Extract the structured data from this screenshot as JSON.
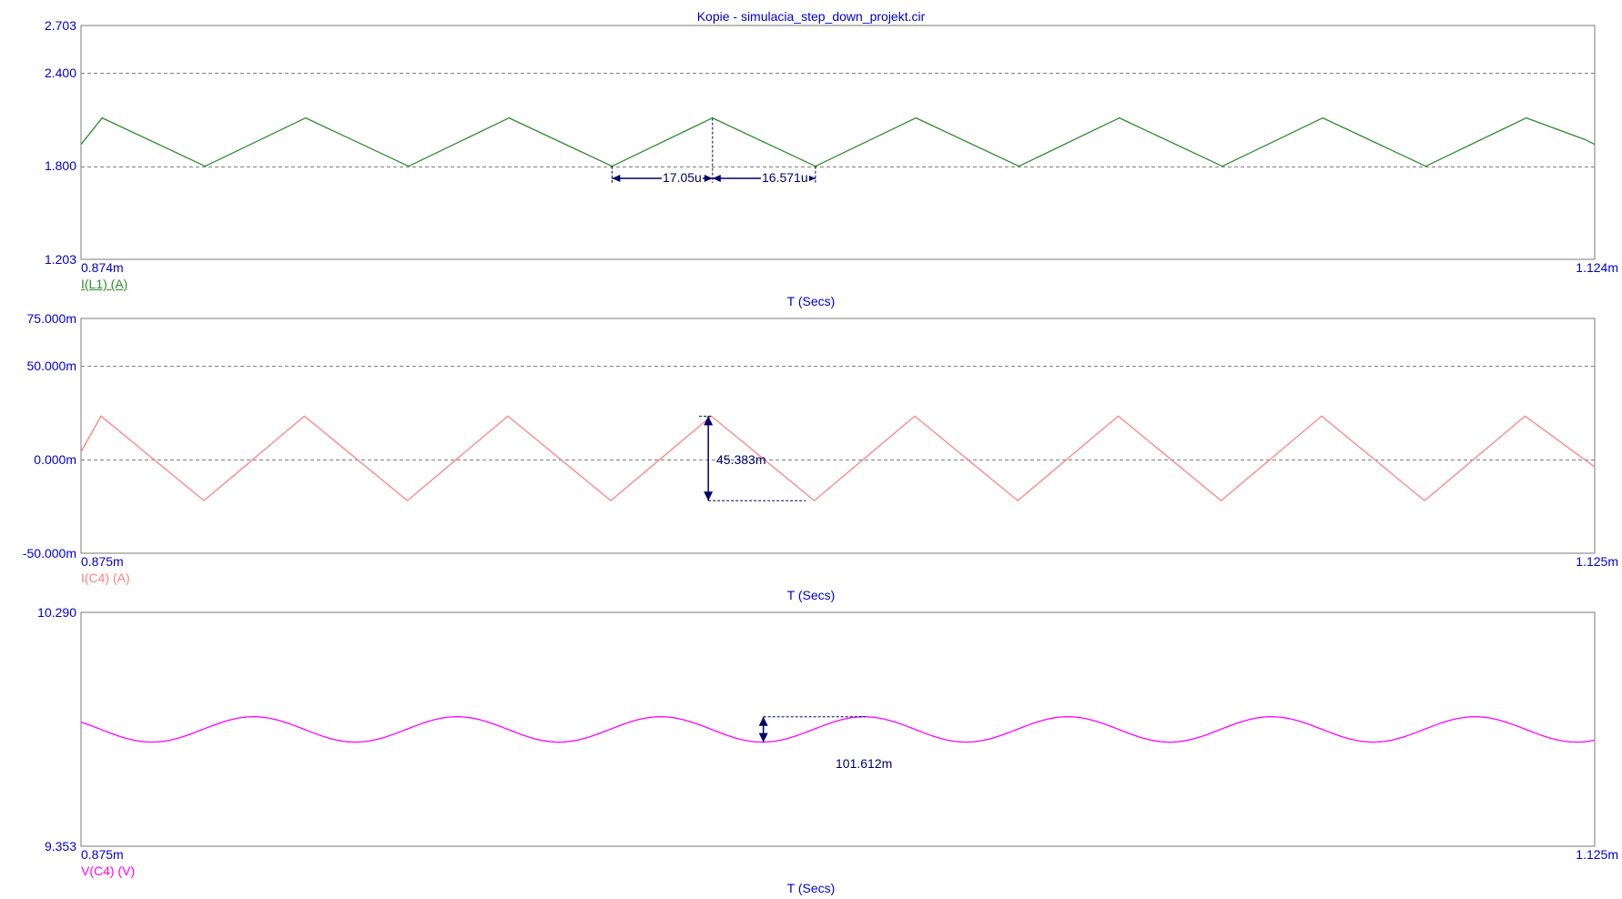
{
  "title": "Kopie - simulacia_step_down_projekt.cir",
  "colors": {
    "axis_text": "#0000cc",
    "frame": "#7a7a7a",
    "grid": "#808080",
    "measure": "#000066"
  },
  "chart_data": [
    {
      "type": "line",
      "y_top_label": "2.703",
      "y_bottom_label": "1.203",
      "ylim": [
        1.203,
        2.703
      ],
      "yticks": [
        {
          "value": 2.4,
          "label": "2.400"
        },
        {
          "value": 1.8,
          "label": "1.800"
        }
      ],
      "x_start_label": "0.874m",
      "x_end_label": "1.124m",
      "xlim": [
        0.874,
        1.124
      ],
      "xlabel": "T (Secs)",
      "grid": true,
      "series": [
        {
          "name": "I(L1) (A)",
          "color": "#2e8b2e",
          "x": [
            0.874,
            0.8775,
            0.8945,
            0.9111,
            0.9281,
            0.9447,
            0.9617,
            0.9783,
            0.9953,
            1.0119,
            1.0289,
            1.0455,
            1.0625,
            1.0791,
            1.0961,
            1.1127,
            1.1225,
            1.124
          ],
          "y": [
            1.94,
            2.11,
            1.8,
            2.11,
            1.8,
            2.11,
            1.8,
            2.11,
            1.8,
            2.11,
            1.8,
            2.11,
            1.8,
            2.11,
            1.8,
            2.11,
            1.97,
            1.94
          ]
        }
      ],
      "annotations": [
        {
          "text": "17.05u"
        },
        {
          "text": "16.571u"
        }
      ]
    },
    {
      "type": "line",
      "y_top_label": "75.000m",
      "y_bottom_label": "-50.000m",
      "ylim": [
        -50,
        75
      ],
      "yticks": [
        {
          "value": 50,
          "label": "50.000m"
        },
        {
          "value": 0,
          "label": "0.000m"
        }
      ],
      "x_start_label": "0.875m",
      "x_end_label": "1.125m",
      "xlim": [
        0.875,
        1.125
      ],
      "xlabel": "T (Secs)",
      "grid": true,
      "series": [
        {
          "name": "I(C4) (A)",
          "color": "#ff8080",
          "x": [
            0.875,
            0.8783,
            0.8953,
            0.9119,
            0.9289,
            0.9455,
            0.9625,
            0.9791,
            0.9961,
            1.0127,
            1.0297,
            1.0463,
            1.0633,
            1.0799,
            1.0969,
            1.1135,
            1.125
          ],
          "y": [
            4,
            23,
            -22,
            23,
            -22,
            23,
            -22,
            23,
            -22,
            23,
            -22,
            23,
            -22,
            23,
            -22,
            23,
            -4
          ]
        }
      ],
      "annotations": [
        {
          "text": "45.383m"
        }
      ]
    },
    {
      "type": "line",
      "y_top_label": "10.290",
      "y_bottom_label": "9.353",
      "ylim": [
        9.353,
        10.29
      ],
      "yticks": [],
      "x_start_label": "0.875m",
      "x_end_label": "1.125m",
      "xlim": [
        0.875,
        1.125
      ],
      "xlabel": "T (Secs)",
      "grid": false,
      "series": [
        {
          "name": "V(C4) (V)",
          "color": "#ff00ff",
          "mean": 9.821,
          "amplitude": 0.0508,
          "period": 0.03362,
          "peak_at": 0.9035
        }
      ],
      "annotations": [
        {
          "text": "101.612m"
        }
      ]
    }
  ]
}
